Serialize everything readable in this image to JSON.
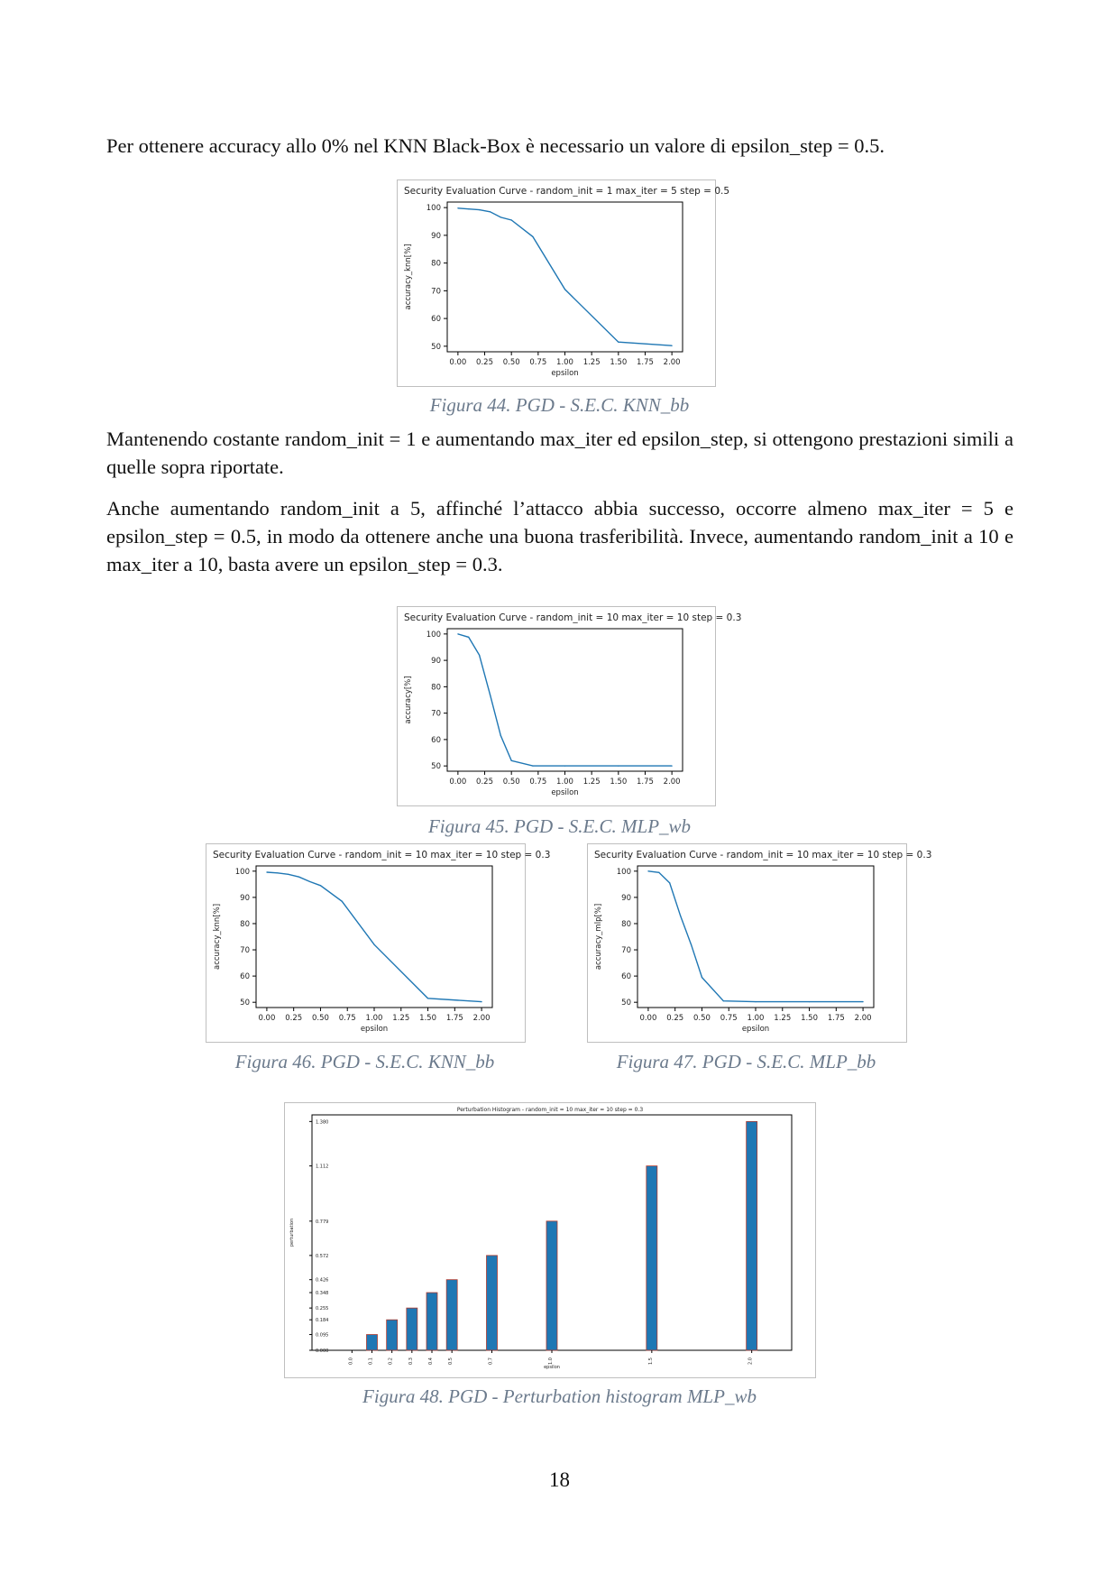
{
  "paragraphs": {
    "p1": "Per ottenere accuracy allo 0% nel KNN Black-Box è necessario un valore di epsilon_step = 0.5.",
    "p2": "Mantenendo costante random_init = 1 e aumentando max_iter ed epsilon_step, si ottengono prestazioni simili a quelle sopra riportate.",
    "p3": "Anche aumentando random_init a 5, affinché l’attacco abbia successo, occorre almeno max_iter = 5 e epsilon_step = 0.5, in modo da ottenere anche una buona trasferibilità. Invece, aumentando random_init a 10 e max_iter a 10, basta avere un epsilon_step = 0.3."
  },
  "captions": {
    "fig44": "Figura 44. PGD - S.E.C. KNN_bb",
    "fig45": "Figura 45. PGD - S.E.C. MLP_wb",
    "fig46": "Figura 46. PGD - S.E.C. KNN_bb",
    "fig47": "Figura 47. PGD - S.E.C. MLP_bb",
    "fig48": "Figura 48. PGD - Perturbation histogram MLP_wb"
  },
  "page_number": "18",
  "colors": {
    "line": "#1f77b4",
    "bar": "#1f77b4",
    "bar_edge": "#b03a2e",
    "caption": "#6b7a8c"
  },
  "chart_data": [
    {
      "id": "fig44",
      "type": "line",
      "title": "Security Evaluation Curve - random_init = 1 max_iter = 5 step = 0.5",
      "xlabel": "epsilon",
      "ylabel": "accuracy_knn[%]",
      "xticks": [
        "0.00",
        "0.25",
        "0.50",
        "0.75",
        "1.00",
        "1.25",
        "1.50",
        "1.75",
        "2.00"
      ],
      "yticks": [
        "50",
        "60",
        "70",
        "80",
        "90",
        "100"
      ],
      "xlim": [
        -0.1,
        2.1
      ],
      "ylim": [
        48,
        102
      ],
      "x": [
        0,
        0.1,
        0.2,
        0.3,
        0.4,
        0.5,
        0.7,
        1.0,
        1.5,
        2.0
      ],
      "y": [
        99.8,
        99.5,
        99.2,
        98.5,
        96.5,
        95.5,
        89.5,
        70.5,
        51.5,
        50.2
      ]
    },
    {
      "id": "fig45",
      "type": "line",
      "title": "Security Evaluation Curve - random_init = 10 max_iter = 10 step = 0.3",
      "xlabel": "epsilon",
      "ylabel": "accuracy[%]",
      "xticks": [
        "0.00",
        "0.25",
        "0.50",
        "0.75",
        "1.00",
        "1.25",
        "1.50",
        "1.75",
        "2.00"
      ],
      "yticks": [
        "50",
        "60",
        "70",
        "80",
        "90",
        "100"
      ],
      "xlim": [
        -0.1,
        2.1
      ],
      "ylim": [
        48,
        102
      ],
      "x": [
        0,
        0.1,
        0.2,
        0.3,
        0.4,
        0.5,
        0.7,
        1.0,
        1.5,
        2.0
      ],
      "y": [
        100,
        98.8,
        92,
        77,
        61.5,
        52,
        50,
        50,
        50,
        50
      ]
    },
    {
      "id": "fig46",
      "type": "line",
      "title": "Security Evaluation Curve - random_init = 10 max_iter = 10 step = 0.3",
      "xlabel": "epsilon",
      "ylabel": "accuracy_knn[%]",
      "xticks": [
        "0.00",
        "0.25",
        "0.50",
        "0.75",
        "1.00",
        "1.25",
        "1.50",
        "1.75",
        "2.00"
      ],
      "yticks": [
        "50",
        "60",
        "70",
        "80",
        "90",
        "100"
      ],
      "xlim": [
        -0.1,
        2.1
      ],
      "ylim": [
        48,
        102
      ],
      "x": [
        0,
        0.1,
        0.2,
        0.3,
        0.4,
        0.5,
        0.7,
        1.0,
        1.5,
        2.0
      ],
      "y": [
        99.6,
        99.3,
        98.8,
        97.8,
        96,
        94.5,
        88.5,
        72,
        51.5,
        50.2
      ]
    },
    {
      "id": "fig47",
      "type": "line",
      "title": "Security Evaluation Curve - random_init = 10 max_iter = 10 step = 0.3",
      "xlabel": "epsilon",
      "ylabel": "accuracy_mlp[%]",
      "xticks": [
        "0.00",
        "0.25",
        "0.50",
        "0.75",
        "1.00",
        "1.25",
        "1.50",
        "1.75",
        "2.00"
      ],
      "yticks": [
        "50",
        "60",
        "70",
        "80",
        "90",
        "100"
      ],
      "xlim": [
        -0.1,
        2.1
      ],
      "ylim": [
        48,
        102
      ],
      "x": [
        0,
        0.1,
        0.2,
        0.3,
        0.4,
        0.5,
        0.7,
        1.0,
        1.5,
        2.0
      ],
      "y": [
        100,
        99.5,
        95.5,
        83,
        72,
        59.5,
        50.5,
        50.2,
        50.2,
        50.2
      ]
    },
    {
      "id": "fig48",
      "type": "bar",
      "title": "Perturbation Histogram - random_init = 10 max_iter = 10 step = 0.3",
      "xlabel": "epsilon",
      "ylabel": "perturbation",
      "categories": [
        "0.0",
        "0.1",
        "0.2",
        "0.3",
        "0.4",
        "0.5",
        "0.7",
        "1.0",
        "1.5",
        "2.0"
      ],
      "values": [
        0.0,
        0.095,
        0.184,
        0.255,
        0.348,
        0.426,
        0.572,
        0.779,
        1.112,
        1.38
      ],
      "yticks": [
        "0.000",
        "0.095",
        "0.184",
        "0.255",
        "0.348",
        "0.426",
        "0.572",
        "0.779",
        "1.112",
        "1.380"
      ],
      "ylim": [
        0,
        1.42
      ]
    }
  ]
}
